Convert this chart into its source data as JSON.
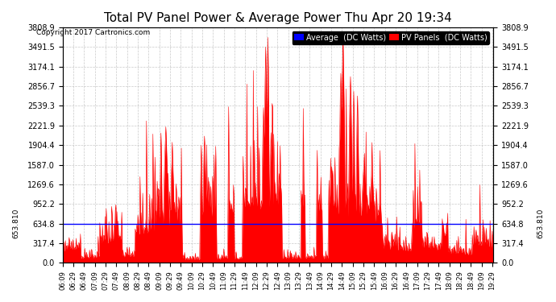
{
  "title": "Total PV Panel Power & Average Power Thu Apr 20 19:34",
  "copyright": "Copyright 2017 Cartronics.com",
  "ylabel_annotation": "653.810",
  "average_value": 634.8,
  "yticks": [
    0.0,
    317.4,
    634.8,
    952.2,
    1269.6,
    1587.0,
    1904.4,
    2221.9,
    2539.3,
    2856.7,
    3174.1,
    3491.5,
    3808.9
  ],
  "ymax": 3808.9,
  "legend_labels": [
    "Average  (DC Watts)",
    "PV Panels  (DC Watts)"
  ],
  "legend_colors": [
    "#0000ff",
    "#ff0000"
  ],
  "bg_color": "#ffffff",
  "grid_color": "#bbbbbb",
  "fill_color": "#ff0000",
  "avg_line_color": "#0000ff",
  "title_fontsize": 11,
  "tick_fontsize": 7,
  "start_hour": 6.15,
  "end_hour": 19.517,
  "tick_interval_min": 20
}
